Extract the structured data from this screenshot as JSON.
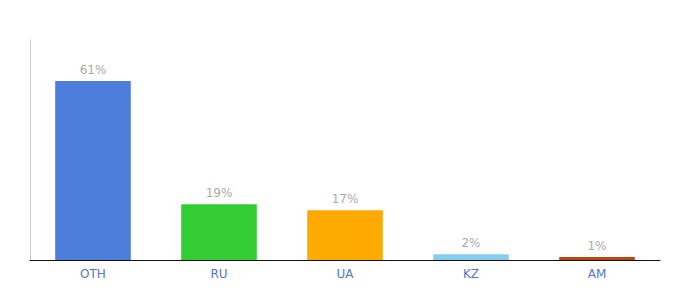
{
  "chart_data": {
    "type": "bar",
    "categories": [
      "OTH",
      "RU",
      "UA",
      "KZ",
      "AM"
    ],
    "values": [
      61,
      19,
      17,
      2,
      1
    ],
    "value_labels": [
      "61%",
      "19%",
      "17%",
      "2%",
      "1%"
    ],
    "colors": [
      "#4d7edc",
      "#33cc33",
      "#ffaa00",
      "#88ccee",
      "#bb4411"
    ],
    "ylim": [
      0,
      75
    ],
    "data_labels": true,
    "tick_labels": "x",
    "grid": false
  }
}
